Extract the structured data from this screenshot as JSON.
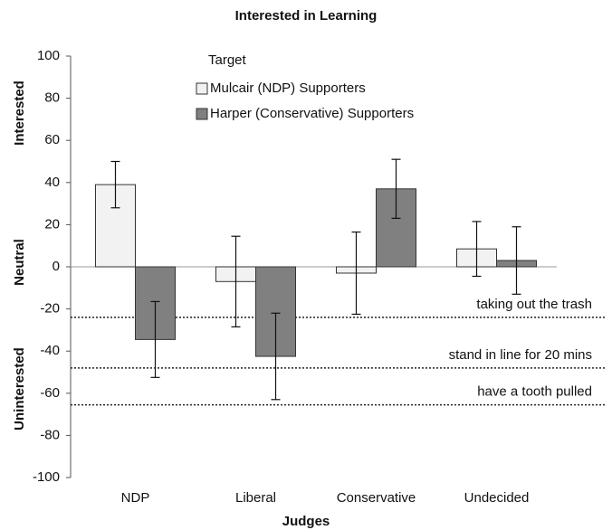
{
  "chart_data": {
    "type": "bar",
    "title": "Interested in Learning",
    "x_label": "Judges",
    "side_labels": [
      "Interested",
      "Neutral",
      "Uninterested"
    ],
    "legend_title": "Target",
    "categories": [
      "NDP",
      "Liberal",
      "Conservative",
      "Undecided"
    ],
    "series": [
      {
        "name": "Mulcair (NDP) Supporters",
        "color": "#f2f2f2",
        "values": [
          39,
          -7,
          -3,
          8.5
        ],
        "errors": [
          11,
          21.5,
          19.5,
          13
        ]
      },
      {
        "name": "Harper (Conservative) Supporters",
        "color": "#808080",
        "values": [
          -34.5,
          -42.5,
          37,
          3
        ],
        "errors": [
          18,
          20.5,
          14,
          16
        ]
      }
    ],
    "reference_lines": [
      {
        "value": -24,
        "label": "taking out the trash"
      },
      {
        "value": -48,
        "label": "stand in line for 20 mins"
      },
      {
        "value": -65.5,
        "label": "have a tooth pulled"
      }
    ],
    "ylim": [
      -100,
      100
    ],
    "yticks": [
      -100,
      -80,
      -60,
      -40,
      -20,
      0,
      20,
      40,
      60,
      80,
      100
    ]
  }
}
